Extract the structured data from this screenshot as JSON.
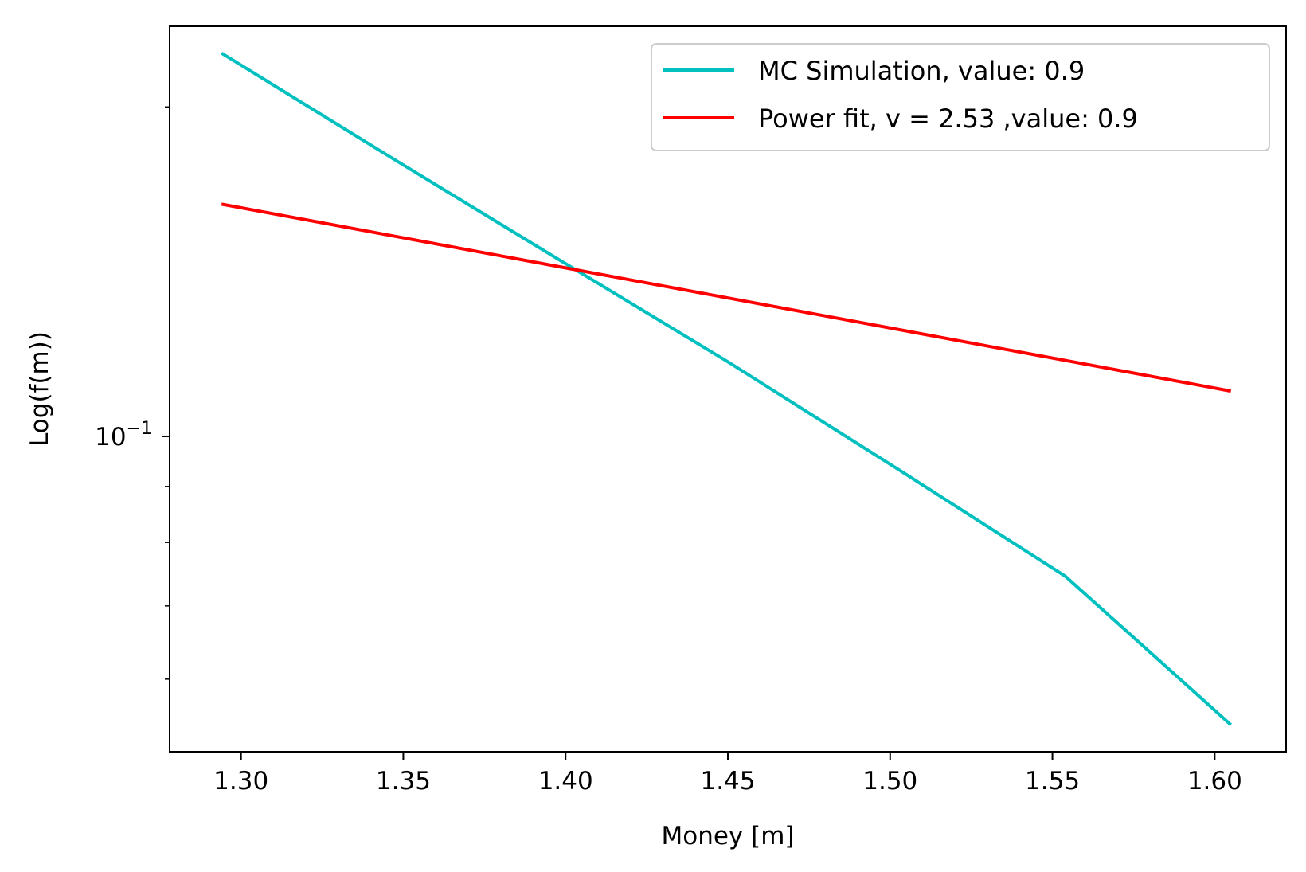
{
  "chart_data": {
    "type": "line",
    "title": "",
    "xlabel": "Money [m]",
    "ylabel": "Log(f(m))",
    "xscale": "linear",
    "yscale": "log",
    "xlim": [
      1.278,
      1.622
    ],
    "ylim": [
      0.0515,
      0.237
    ],
    "xticks": [
      {
        "value": 1.3,
        "label": "1.30"
      },
      {
        "value": 1.35,
        "label": "1.35"
      },
      {
        "value": 1.4,
        "label": "1.40"
      },
      {
        "value": 1.45,
        "label": "1.45"
      },
      {
        "value": 1.5,
        "label": "1.50"
      },
      {
        "value": 1.55,
        "label": "1.55"
      },
      {
        "value": 1.6,
        "label": "1.60"
      }
    ],
    "yticks_major": [
      {
        "value": 0.1,
        "base": "10",
        "exponent": "−1"
      }
    ],
    "yticks_minor": [
      0.06,
      0.07,
      0.08,
      0.09,
      0.2
    ],
    "grid": false,
    "legend_position": "top-right",
    "series": [
      {
        "name": "MC Simulation, value: 0.9",
        "color": "#00bfbf",
        "x": [
          1.294,
          1.346,
          1.398,
          1.45,
          1.502,
          1.554,
          1.605
        ],
        "y": [
          0.224,
          0.18,
          0.145,
          0.117,
          0.0935,
          0.0745,
          0.0545
        ]
      },
      {
        "name": "Power fit, v = 2.53 ,value: 0.9",
        "color": "#ff0000",
        "x": [
          1.294,
          1.605
        ],
        "y": [
          0.163,
          0.11
        ]
      }
    ]
  }
}
